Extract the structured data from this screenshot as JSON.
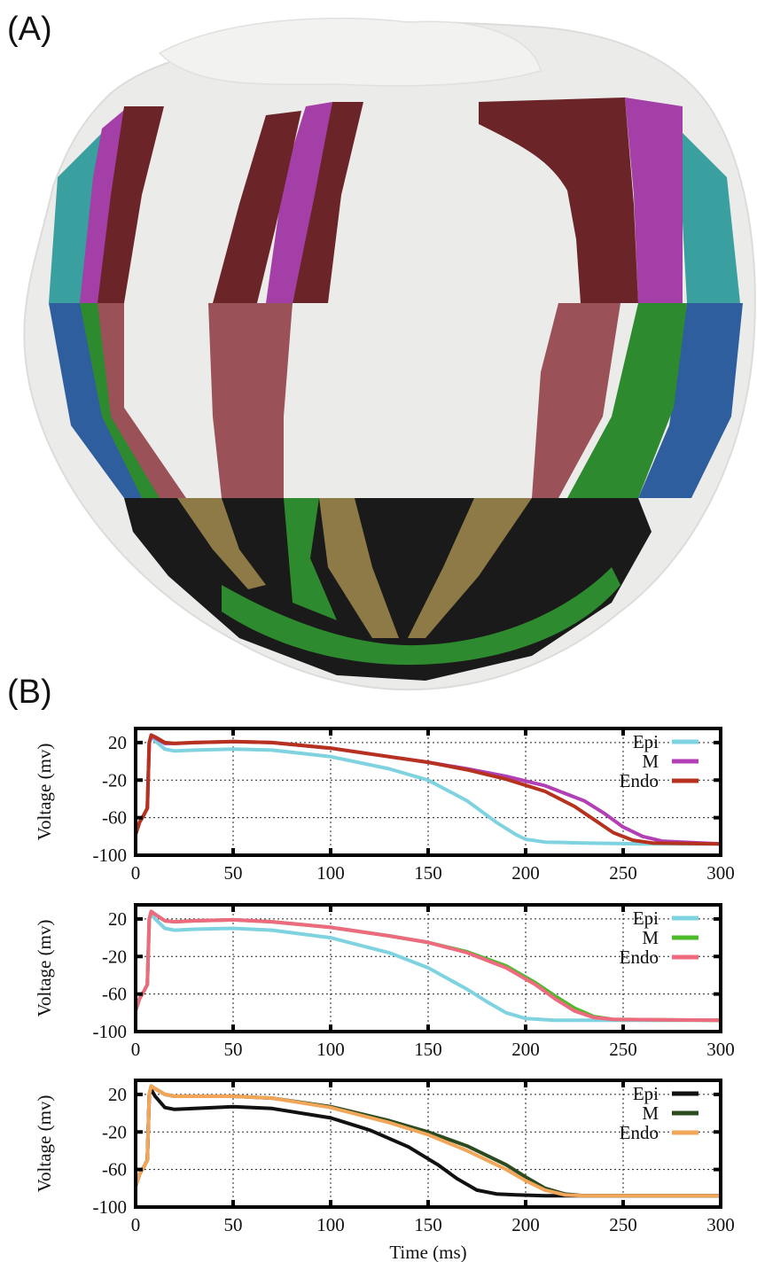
{
  "panels": {
    "a_label": "(A)",
    "b_label": "(B)"
  },
  "colors": {
    "heart_surface": "#ebebea",
    "segment_maroon": "#6b2428",
    "segment_magenta": "#a53fa8",
    "segment_teal": "#3a9f9f",
    "segment_blue": "#2f5e9e",
    "segment_green": "#2e8a2e",
    "segment_rose": "#9a5157",
    "segment_olive": "#8e7a46",
    "segment_black": "#1a1a1a"
  },
  "chart_data": [
    {
      "type": "line",
      "ylabel": "Voltage (mv)",
      "xlabel": "",
      "xlim": [
        0,
        300
      ],
      "ylim": [
        -100,
        35
      ],
      "xticks": [
        "0",
        "50",
        "100",
        "150",
        "200",
        "250",
        "300"
      ],
      "yticks": [
        "20",
        "-20",
        "-60",
        "-100"
      ],
      "grid": true,
      "legend_position": "top-right",
      "series": [
        {
          "name": "Epi",
          "color": "#7fd3e0",
          "x": [
            0,
            2,
            4,
            6,
            7,
            8,
            10,
            15,
            20,
            30,
            50,
            70,
            100,
            130,
            150,
            170,
            185,
            195,
            200,
            210,
            230,
            260,
            300
          ],
          "y": [
            -78,
            -65,
            -58,
            -50,
            20,
            26,
            22,
            13,
            11,
            12,
            13,
            12,
            5,
            -8,
            -20,
            -42,
            -65,
            -78,
            -83,
            -86,
            -87,
            -88,
            -88
          ]
        },
        {
          "name": "M",
          "color": "#b23fb5",
          "x": [
            0,
            2,
            4,
            6,
            7,
            8,
            10,
            15,
            20,
            30,
            50,
            70,
            100,
            130,
            150,
            170,
            190,
            210,
            230,
            240,
            250,
            260,
            270,
            300
          ],
          "y": [
            -78,
            -65,
            -58,
            -50,
            20,
            27,
            25,
            19,
            19,
            20,
            21,
            20,
            14,
            5,
            -1,
            -8,
            -16,
            -26,
            -42,
            -55,
            -70,
            -80,
            -85,
            -88
          ]
        },
        {
          "name": "Endo",
          "color": "#b7311f",
          "x": [
            0,
            2,
            4,
            6,
            7,
            8,
            10,
            15,
            20,
            30,
            50,
            70,
            100,
            130,
            150,
            170,
            190,
            210,
            225,
            235,
            245,
            255,
            265,
            300
          ],
          "y": [
            -78,
            -65,
            -58,
            -50,
            20,
            28,
            26,
            20,
            19,
            20,
            21,
            20,
            14,
            5,
            -1,
            -9,
            -19,
            -32,
            -48,
            -62,
            -76,
            -84,
            -87,
            -88
          ]
        }
      ]
    },
    {
      "type": "line",
      "ylabel": "Voltage (mv)",
      "xlabel": "",
      "xlim": [
        0,
        300
      ],
      "ylim": [
        -100,
        35
      ],
      "xticks": [
        "0",
        "50",
        "100",
        "150",
        "200",
        "250",
        "300"
      ],
      "yticks": [
        "20",
        "-20",
        "-60",
        "-100"
      ],
      "grid": true,
      "legend_position": "top-right",
      "series": [
        {
          "name": "Epi",
          "color": "#7fd3e0",
          "x": [
            0,
            2,
            4,
            6,
            7,
            8,
            10,
            15,
            20,
            30,
            50,
            70,
            100,
            130,
            150,
            170,
            180,
            190,
            200,
            215,
            250,
            300
          ],
          "y": [
            -78,
            -65,
            -58,
            -50,
            20,
            25,
            20,
            10,
            8,
            9,
            10,
            8,
            0,
            -16,
            -32,
            -55,
            -68,
            -80,
            -86,
            -88,
            -88,
            -88
          ]
        },
        {
          "name": "M",
          "color": "#4cbb2a",
          "x": [
            0,
            2,
            4,
            6,
            7,
            8,
            10,
            15,
            20,
            30,
            50,
            70,
            100,
            130,
            150,
            170,
            190,
            205,
            215,
            225,
            235,
            245,
            300
          ],
          "y": [
            -78,
            -65,
            -58,
            -50,
            20,
            28,
            25,
            18,
            17,
            18,
            19,
            17,
            11,
            2,
            -5,
            -15,
            -30,
            -48,
            -62,
            -75,
            -84,
            -87,
            -88
          ]
        },
        {
          "name": "Endo",
          "color": "#ee6a7f",
          "x": [
            0,
            2,
            4,
            6,
            7,
            8,
            10,
            15,
            20,
            30,
            50,
            70,
            100,
            130,
            150,
            170,
            190,
            205,
            215,
            225,
            235,
            245,
            300
          ],
          "y": [
            -78,
            -65,
            -58,
            -50,
            20,
            28,
            25,
            18,
            17,
            18,
            19,
            17,
            11,
            2,
            -5,
            -16,
            -32,
            -50,
            -65,
            -78,
            -85,
            -87,
            -88
          ]
        }
      ]
    },
    {
      "type": "line",
      "ylabel": "Voltage (mv)",
      "xlabel": "Time (ms)",
      "xlim": [
        0,
        300
      ],
      "ylim": [
        -100,
        35
      ],
      "xticks": [
        "0",
        "50",
        "100",
        "150",
        "200",
        "250",
        "300"
      ],
      "yticks": [
        "20",
        "-20",
        "-60",
        "-100"
      ],
      "grid": true,
      "legend_position": "top-right",
      "series": [
        {
          "name": "Epi",
          "color": "#111111",
          "x": [
            0,
            2,
            4,
            6,
            7,
            8,
            10,
            15,
            20,
            30,
            50,
            70,
            100,
            120,
            140,
            155,
            165,
            175,
            185,
            195,
            210,
            250,
            300
          ],
          "y": [
            -78,
            -65,
            -58,
            -50,
            20,
            25,
            18,
            6,
            4,
            5,
            7,
            5,
            -5,
            -18,
            -36,
            -55,
            -70,
            -82,
            -86,
            -87,
            -88,
            -88,
            -88
          ]
        },
        {
          "name": "M",
          "color": "#2b4a1f",
          "x": [
            0,
            2,
            4,
            6,
            7,
            8,
            10,
            15,
            20,
            30,
            50,
            70,
            100,
            130,
            150,
            170,
            190,
            200,
            210,
            220,
            230,
            300
          ],
          "y": [
            -78,
            -65,
            -58,
            -50,
            20,
            29,
            26,
            20,
            18,
            18,
            18,
            16,
            7,
            -8,
            -20,
            -35,
            -55,
            -68,
            -80,
            -86,
            -88,
            -88
          ]
        },
        {
          "name": "Endo",
          "color": "#f2a65a",
          "x": [
            0,
            2,
            4,
            6,
            7,
            8,
            10,
            15,
            20,
            30,
            50,
            70,
            100,
            130,
            150,
            170,
            190,
            200,
            210,
            220,
            230,
            300
          ],
          "y": [
            -78,
            -65,
            -58,
            -50,
            20,
            29,
            26,
            20,
            18,
            18,
            18,
            16,
            6,
            -10,
            -23,
            -40,
            -60,
            -72,
            -82,
            -87,
            -88,
            -88
          ]
        }
      ]
    }
  ]
}
